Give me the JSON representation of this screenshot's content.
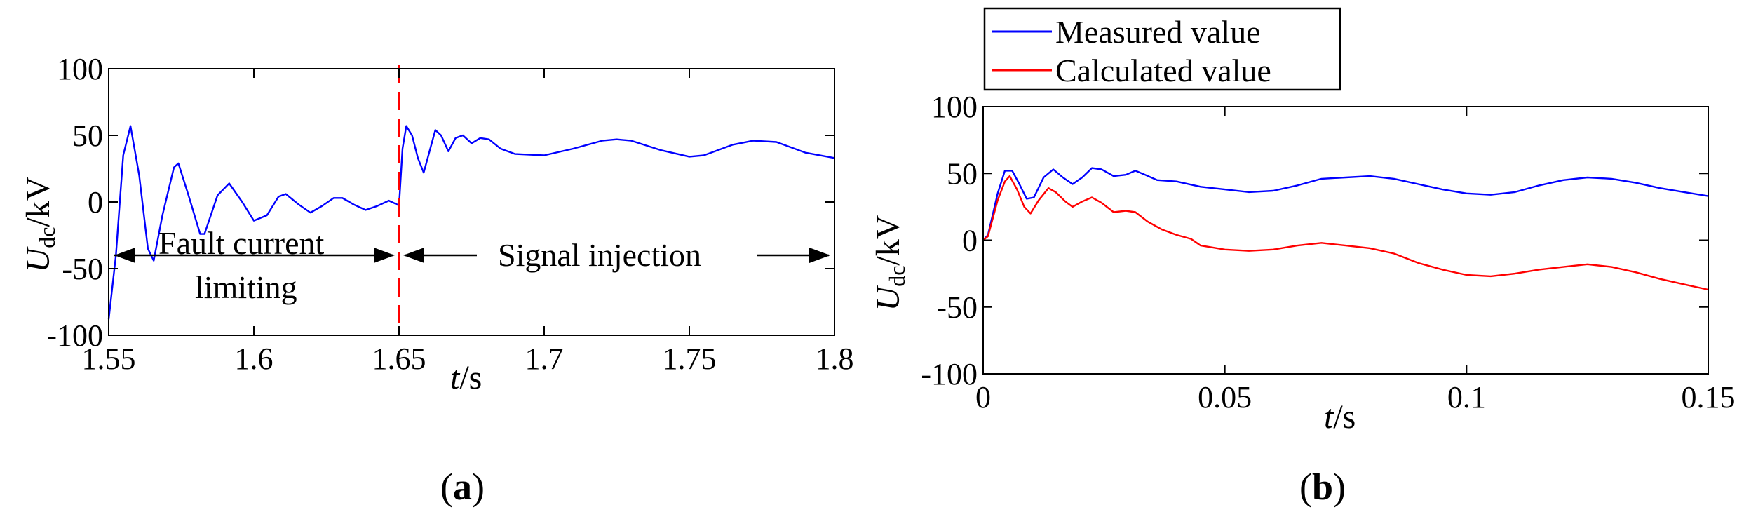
{
  "chart_data": [
    {
      "type": "line",
      "panel_label": "a",
      "xlabel": {
        "var": "t",
        "unit": "/s"
      },
      "ylabel": {
        "var": "U",
        "sub": "dc",
        "unit": "/kV"
      },
      "xlim": [
        1.55,
        1.8
      ],
      "ylim": [
        -100,
        100
      ],
      "xticks": [
        1.55,
        1.6,
        1.65,
        1.7,
        1.75,
        1.8
      ],
      "xtick_labels": [
        "1.55",
        "1.6",
        "1.65",
        "1.7",
        "1.75",
        "1.8"
      ],
      "yticks": [
        -100,
        -50,
        0,
        50,
        100
      ],
      "ytick_labels": [
        "-100",
        "-50",
        "0",
        "50",
        "100"
      ],
      "grid": false,
      "marker_line": {
        "x": 1.65,
        "color": "#ff0000",
        "style": "dashed"
      },
      "annotations": [
        {
          "id": "fault",
          "lines": [
            "Fault current",
            "limiting"
          ],
          "arrow_from": 1.55,
          "arrow_to": 1.65,
          "y": -40
        },
        {
          "id": "signal",
          "lines": [
            "Signal injection"
          ],
          "arrow_from": 1.65,
          "arrow_to": 1.8,
          "y": -40
        }
      ],
      "series": [
        {
          "name": "Udc",
          "color": "#0000ff",
          "points": [
            [
              1.55,
              -88
            ],
            [
              1.5525,
              -40
            ],
            [
              1.555,
              35
            ],
            [
              1.5575,
              57
            ],
            [
              1.5605,
              20
            ],
            [
              1.5635,
              -35
            ],
            [
              1.5655,
              -44
            ],
            [
              1.5685,
              -10
            ],
            [
              1.5725,
              26
            ],
            [
              1.574,
              29
            ],
            [
              1.5775,
              5
            ],
            [
              1.5815,
              -24
            ],
            [
              1.583,
              -24
            ],
            [
              1.5875,
              5
            ],
            [
              1.5915,
              14
            ],
            [
              1.596,
              0
            ],
            [
              1.6,
              -14
            ],
            [
              1.6045,
              -10
            ],
            [
              1.6085,
              4
            ],
            [
              1.611,
              6
            ],
            [
              1.6155,
              -2
            ],
            [
              1.6195,
              -8
            ],
            [
              1.6235,
              -3
            ],
            [
              1.6275,
              3
            ],
            [
              1.6305,
              3
            ],
            [
              1.6345,
              -2
            ],
            [
              1.6385,
              -6
            ],
            [
              1.6425,
              -3
            ],
            [
              1.6465,
              1
            ],
            [
              1.6495,
              -2
            ],
            [
              1.65,
              -3
            ],
            [
              1.6512,
              40
            ],
            [
              1.6525,
              57
            ],
            [
              1.6545,
              50
            ],
            [
              1.6565,
              33
            ],
            [
              1.6585,
              22
            ],
            [
              1.6605,
              38
            ],
            [
              1.6625,
              54
            ],
            [
              1.6645,
              50
            ],
            [
              1.667,
              38
            ],
            [
              1.6695,
              48
            ],
            [
              1.672,
              50
            ],
            [
              1.675,
              44
            ],
            [
              1.678,
              48
            ],
            [
              1.681,
              47
            ],
            [
              1.685,
              40
            ],
            [
              1.69,
              36
            ],
            [
              1.7,
              35
            ],
            [
              1.71,
              40
            ],
            [
              1.72,
              46
            ],
            [
              1.725,
              47
            ],
            [
              1.73,
              46
            ],
            [
              1.74,
              39
            ],
            [
              1.75,
              34
            ],
            [
              1.755,
              35
            ],
            [
              1.765,
              43
            ],
            [
              1.772,
              46
            ],
            [
              1.78,
              45
            ],
            [
              1.79,
              37
            ],
            [
              1.8,
              33
            ]
          ]
        }
      ]
    },
    {
      "type": "line",
      "panel_label": "b",
      "xlabel": {
        "var": "t",
        "unit": "/s"
      },
      "ylabel": {
        "var": "U",
        "sub": "dc",
        "unit": "/kV"
      },
      "xlim": [
        0,
        0.15
      ],
      "ylim": [
        -100,
        100
      ],
      "xticks": [
        0,
        0.05,
        0.1,
        0.15
      ],
      "xtick_labels": [
        "0",
        "0.05",
        "0.1",
        "0.15"
      ],
      "yticks": [
        -100,
        -50,
        0,
        50,
        100
      ],
      "ytick_labels": [
        "-100",
        "-50",
        "0",
        "50",
        "100"
      ],
      "grid": false,
      "legend": {
        "position": "above-left",
        "entries": [
          "Measured value",
          "Calculated value"
        ]
      },
      "series": [
        {
          "name": "Measured value",
          "color": "#0000ff",
          "points": [
            [
              0,
              0
            ],
            [
              0.001,
              4
            ],
            [
              0.003,
              35
            ],
            [
              0.0045,
              52
            ],
            [
              0.006,
              52
            ],
            [
              0.0075,
              42
            ],
            [
              0.009,
              31
            ],
            [
              0.0105,
              32
            ],
            [
              0.0125,
              47
            ],
            [
              0.0145,
              53
            ],
            [
              0.0165,
              47
            ],
            [
              0.0185,
              42
            ],
            [
              0.0205,
              47
            ],
            [
              0.0225,
              54
            ],
            [
              0.0245,
              53
            ],
            [
              0.027,
              48
            ],
            [
              0.0295,
              49
            ],
            [
              0.0315,
              52
            ],
            [
              0.0335,
              49
            ],
            [
              0.036,
              45
            ],
            [
              0.04,
              44
            ],
            [
              0.045,
              40
            ],
            [
              0.05,
              38
            ],
            [
              0.055,
              36
            ],
            [
              0.06,
              37
            ],
            [
              0.065,
              41
            ],
            [
              0.07,
              46
            ],
            [
              0.075,
              47
            ],
            [
              0.08,
              48
            ],
            [
              0.085,
              46
            ],
            [
              0.09,
              42
            ],
            [
              0.095,
              38
            ],
            [
              0.1,
              35
            ],
            [
              0.105,
              34
            ],
            [
              0.11,
              36
            ],
            [
              0.115,
              41
            ],
            [
              0.12,
              45
            ],
            [
              0.125,
              47
            ],
            [
              0.13,
              46
            ],
            [
              0.135,
              43
            ],
            [
              0.14,
              39
            ],
            [
              0.145,
              36
            ],
            [
              0.15,
              33
            ]
          ]
        },
        {
          "name": "Calculated value",
          "color": "#ff0000",
          "points": [
            [
              0,
              0
            ],
            [
              0.001,
              3
            ],
            [
              0.003,
              30
            ],
            [
              0.0045,
              44
            ],
            [
              0.0055,
              48
            ],
            [
              0.007,
              38
            ],
            [
              0.0085,
              25
            ],
            [
              0.0098,
              20
            ],
            [
              0.0115,
              30
            ],
            [
              0.0135,
              39
            ],
            [
              0.015,
              36
            ],
            [
              0.017,
              29
            ],
            [
              0.0185,
              25
            ],
            [
              0.0205,
              29
            ],
            [
              0.0225,
              32
            ],
            [
              0.0245,
              28
            ],
            [
              0.027,
              21
            ],
            [
              0.0295,
              22
            ],
            [
              0.0315,
              21
            ],
            [
              0.034,
              14
            ],
            [
              0.037,
              8
            ],
            [
              0.04,
              4
            ],
            [
              0.043,
              1
            ],
            [
              0.045,
              -4
            ],
            [
              0.05,
              -7
            ],
            [
              0.055,
              -8
            ],
            [
              0.06,
              -7
            ],
            [
              0.065,
              -4
            ],
            [
              0.07,
              -2
            ],
            [
              0.075,
              -4
            ],
            [
              0.08,
              -6
            ],
            [
              0.085,
              -10
            ],
            [
              0.09,
              -17
            ],
            [
              0.095,
              -22
            ],
            [
              0.1,
              -26
            ],
            [
              0.105,
              -27
            ],
            [
              0.11,
              -25
            ],
            [
              0.115,
              -22
            ],
            [
              0.12,
              -20
            ],
            [
              0.125,
              -18
            ],
            [
              0.13,
              -20
            ],
            [
              0.135,
              -24
            ],
            [
              0.14,
              -29
            ],
            [
              0.145,
              -33
            ],
            [
              0.15,
              -37
            ]
          ]
        }
      ]
    }
  ]
}
